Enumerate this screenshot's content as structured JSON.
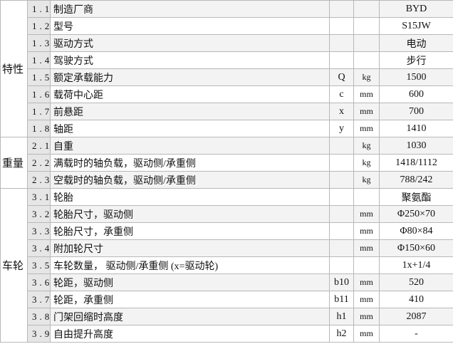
{
  "groups": [
    {
      "name": "特性",
      "rows": [
        {
          "no": "1.1",
          "label": "制造厂商",
          "value": "BYD"
        },
        {
          "no": "1.2",
          "label": "型号",
          "value": "S15JW"
        },
        {
          "no": "1.3",
          "label": "驱动方式",
          "value": "电动"
        },
        {
          "no": "1.4",
          "label": "驾驶方式",
          "value": "步行"
        },
        {
          "no": "1.5",
          "label": "额定承载能力",
          "symbol": "Q",
          "unit": "kg",
          "value": "1500"
        },
        {
          "no": "1.6",
          "label": "载荷中心距",
          "symbol": "c",
          "unit": "mm",
          "value": "600"
        },
        {
          "no": "1.7",
          "label": "前悬距",
          "symbol": "x",
          "unit": "mm",
          "value": "700"
        },
        {
          "no": "1.8",
          "label": "轴距",
          "symbol": "y",
          "unit": "mm",
          "value": "1410"
        }
      ]
    },
    {
      "name": "重量",
      "rows": [
        {
          "no": "2.1",
          "label": "自重",
          "unit": "kg",
          "value": "1030"
        },
        {
          "no": "2.2",
          "label": "满载时的轴负载，驱动侧/承重侧",
          "unit": "kg",
          "value": "1418/1112"
        },
        {
          "no": "2.3",
          "label": "空载时的轴负载，驱动侧/承重侧",
          "unit": "kg",
          "value": "788/242"
        }
      ]
    },
    {
      "name": "车轮",
      "rows": [
        {
          "no": "3.1",
          "label": "轮胎",
          "value": "聚氨酯"
        },
        {
          "no": "3.2",
          "label": "轮胎尺寸，驱动侧",
          "unit": "mm",
          "value": "Φ250×70"
        },
        {
          "no": "3.3",
          "label": "轮胎尺寸，承重侧",
          "unit": "mm",
          "value": "Φ80×84"
        },
        {
          "no": "3.4",
          "label": "附加轮尺寸",
          "unit": "mm",
          "value": "Φ150×60"
        },
        {
          "no": "3.5",
          "label": "车轮数量， 驱动侧/承重侧 (x=驱动轮)",
          "value": "1x+1/4"
        },
        {
          "no": "3.6",
          "label": "轮距，驱动侧",
          "symbol": "b10",
          "unit": "mm",
          "value": "520"
        },
        {
          "no": "3.7",
          "label": "轮距，承重侧",
          "symbol": "b11",
          "unit": "mm",
          "value": "410"
        },
        {
          "no": "3.8",
          "label": "门架回缩时高度",
          "symbol": "h1",
          "unit": "mm",
          "value": "2087"
        },
        {
          "no": "3.9",
          "label": "自由提升高度",
          "symbol": "h2",
          "unit": "mm",
          "value": "-"
        }
      ]
    }
  ]
}
